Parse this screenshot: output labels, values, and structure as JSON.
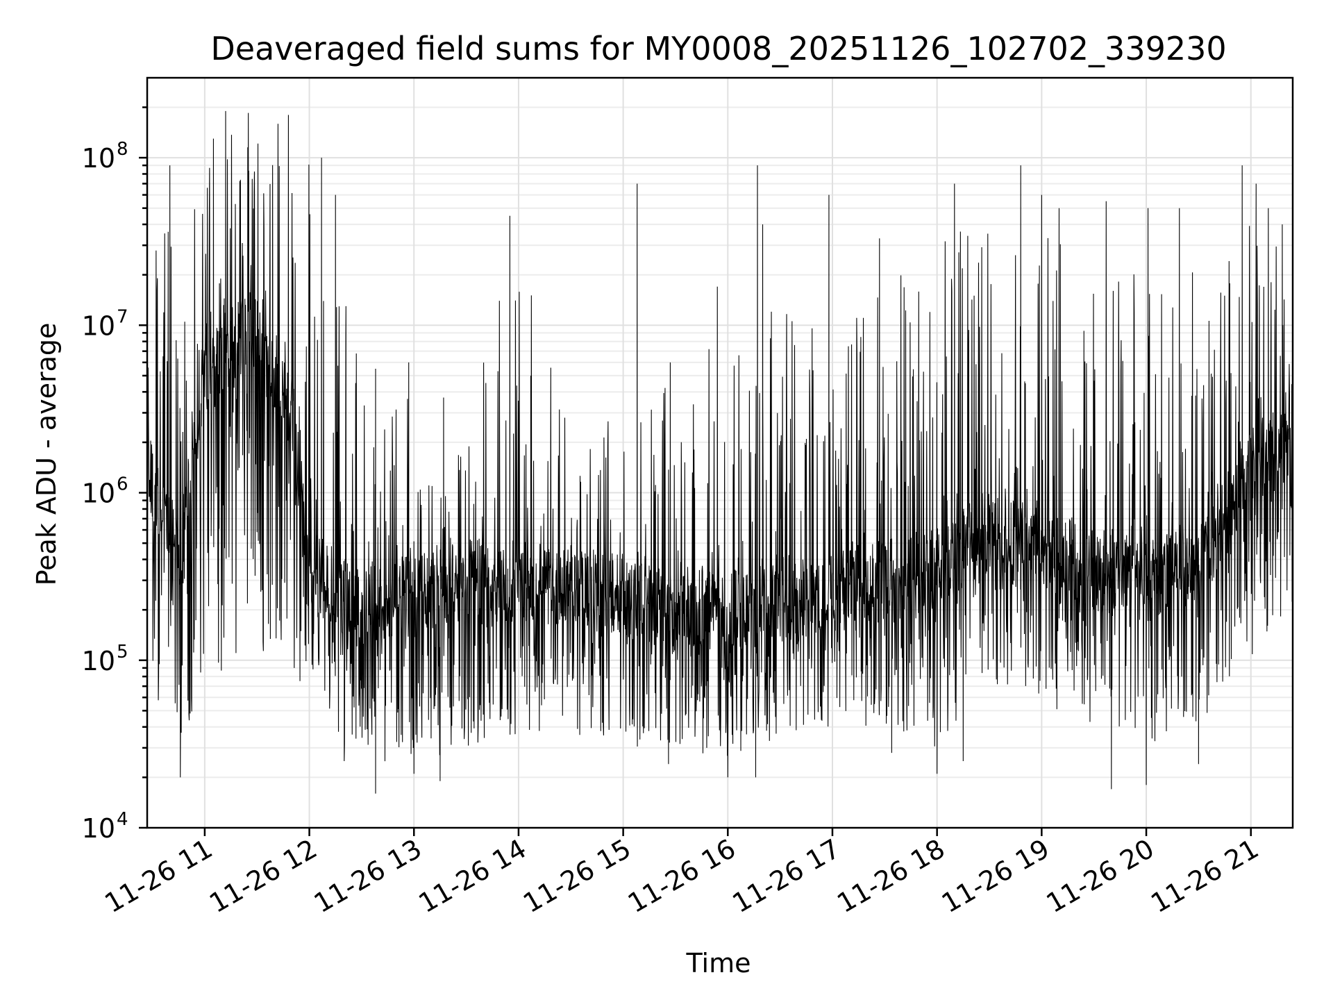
{
  "chart_data": {
    "type": "line",
    "title": "Deaveraged field sums for MY0008_20251126_102702_339230",
    "xlabel": "Time",
    "ylabel": "Peak ADU - average",
    "yscale": "log",
    "ylim": [
      10000,
      300000000
    ],
    "xlim": [
      "2025-11-26T10:27",
      "2025-11-26T21:24"
    ],
    "x_ticks": [
      {
        "value": "2025-11-26T11:00",
        "label": "11-26 11"
      },
      {
        "value": "2025-11-26T12:00",
        "label": "11-26 12"
      },
      {
        "value": "2025-11-26T13:00",
        "label": "11-26 13"
      },
      {
        "value": "2025-11-26T14:00",
        "label": "11-26 14"
      },
      {
        "value": "2025-11-26T15:00",
        "label": "11-26 15"
      },
      {
        "value": "2025-11-26T16:00",
        "label": "11-26 16"
      },
      {
        "value": "2025-11-26T17:00",
        "label": "11-26 17"
      },
      {
        "value": "2025-11-26T18:00",
        "label": "11-26 18"
      },
      {
        "value": "2025-11-26T19:00",
        "label": "11-26 19"
      },
      {
        "value": "2025-11-26T20:00",
        "label": "11-26 20"
      },
      {
        "value": "2025-11-26T21:00",
        "label": "11-26 21"
      }
    ],
    "y_ticks": [
      {
        "value": 10000,
        "base": "10",
        "exp": "4"
      },
      {
        "value": 100000,
        "base": "10",
        "exp": "5"
      },
      {
        "value": 1000000,
        "base": "10",
        "exp": "6"
      },
      {
        "value": 10000000,
        "base": "10",
        "exp": "7"
      },
      {
        "value": 100000000,
        "base": "10",
        "exp": "8"
      }
    ],
    "grid": true,
    "legend": false,
    "line_color": "#000000",
    "series_envelope": [
      {
        "t": "2025-11-26T10:27",
        "low": 70000,
        "typical": 1500000,
        "high": 30000000
      },
      {
        "t": "2025-11-26T10:45",
        "low": 30000,
        "typical": 400000,
        "high": 60000000
      },
      {
        "t": "2025-11-26T11:00",
        "low": 50000,
        "typical": 5000000,
        "high": 120000000
      },
      {
        "t": "2025-11-26T11:30",
        "low": 120000,
        "typical": 10000000,
        "high": 190000000
      },
      {
        "t": "2025-11-26T11:50",
        "low": 80000,
        "typical": 3000000,
        "high": 150000000
      },
      {
        "t": "2025-11-26T12:00",
        "low": 50000,
        "typical": 350000,
        "high": 100000000
      },
      {
        "t": "2025-11-26T12:30",
        "low": 25000,
        "typical": 200000,
        "high": 5000000
      },
      {
        "t": "2025-11-26T13:00",
        "low": 22000,
        "typical": 250000,
        "high": 4000000
      },
      {
        "t": "2025-11-26T13:30",
        "low": 30000,
        "typical": 300000,
        "high": 3000000
      },
      {
        "t": "2025-11-26T14:00",
        "low": 30000,
        "typical": 300000,
        "high": 40000000
      },
      {
        "t": "2025-11-26T14:30",
        "low": 35000,
        "typical": 280000,
        "high": 2000000
      },
      {
        "t": "2025-11-26T15:00",
        "low": 30000,
        "typical": 250000,
        "high": 3000000
      },
      {
        "t": "2025-11-26T15:30",
        "low": 30000,
        "typical": 180000,
        "high": 5000000
      },
      {
        "t": "2025-11-26T16:00",
        "low": 25000,
        "typical": 200000,
        "high": 20000000
      },
      {
        "t": "2025-11-26T16:30",
        "low": 35000,
        "typical": 220000,
        "high": 15000000
      },
      {
        "t": "2025-11-26T17:00",
        "low": 40000,
        "typical": 250000,
        "high": 10000000
      },
      {
        "t": "2025-11-26T17:30",
        "low": 40000,
        "typical": 300000,
        "high": 20000000
      },
      {
        "t": "2025-11-26T18:00",
        "low": 30000,
        "typical": 350000,
        "high": 40000000
      },
      {
        "t": "2025-11-26T18:30",
        "low": 60000,
        "typical": 600000,
        "high": 40000000
      },
      {
        "t": "2025-11-26T19:00",
        "low": 50000,
        "typical": 450000,
        "high": 40000000
      },
      {
        "t": "2025-11-26T19:30",
        "low": 40000,
        "typical": 350000,
        "high": 30000000
      },
      {
        "t": "2025-11-26T20:00",
        "low": 30000,
        "typical": 300000,
        "high": 20000000
      },
      {
        "t": "2025-11-26T20:30",
        "low": 40000,
        "typical": 400000,
        "high": 30000000
      },
      {
        "t": "2025-11-26T21:00",
        "low": 100000,
        "typical": 1500000,
        "high": 40000000
      },
      {
        "t": "2025-11-26T21:24",
        "low": 200000,
        "typical": 2000000,
        "high": 30000000
      }
    ],
    "spikes": [
      {
        "t": "2025-11-26T10:40",
        "value": 90000000
      },
      {
        "t": "2025-11-26T11:05",
        "value": 130000000
      },
      {
        "t": "2025-11-26T11:12",
        "value": 190000000
      },
      {
        "t": "2025-11-26T11:25",
        "value": 185000000
      },
      {
        "t": "2025-11-26T11:48",
        "value": 180000000
      },
      {
        "t": "2025-11-26T12:07",
        "value": 100000000
      },
      {
        "t": "2025-11-26T12:15",
        "value": 60000000
      },
      {
        "t": "2025-11-26T12:21",
        "value": 13000000
      },
      {
        "t": "2025-11-26T12:38",
        "value": 5500000
      },
      {
        "t": "2025-11-26T12:57",
        "value": 6000000
      },
      {
        "t": "2025-11-26T13:17",
        "value": 3700000
      },
      {
        "t": "2025-11-26T13:49",
        "value": 14000000
      },
      {
        "t": "2025-11-26T13:55",
        "value": 45000000
      },
      {
        "t": "2025-11-26T14:07",
        "value": 5000000
      },
      {
        "t": "2025-11-26T15:08",
        "value": 70000000
      },
      {
        "t": "2025-11-26T15:27",
        "value": 6000000
      },
      {
        "t": "2025-11-26T15:54",
        "value": 17000000
      },
      {
        "t": "2025-11-26T16:17",
        "value": 90000000
      },
      {
        "t": "2025-11-26T16:20",
        "value": 40000000
      },
      {
        "t": "2025-11-26T16:58",
        "value": 60000000
      },
      {
        "t": "2025-11-26T17:27",
        "value": 33000000
      },
      {
        "t": "2025-11-26T18:10",
        "value": 70000000
      },
      {
        "t": "2025-11-26T18:48",
        "value": 90000000
      },
      {
        "t": "2025-11-26T19:00",
        "value": 60000000
      },
      {
        "t": "2025-11-26T19:10",
        "value": 50000000
      },
      {
        "t": "2025-11-26T19:37",
        "value": 55000000
      },
      {
        "t": "2025-11-26T20:01",
        "value": 50000000
      },
      {
        "t": "2025-11-26T20:19",
        "value": 50000000
      },
      {
        "t": "2025-11-26T20:55",
        "value": 90000000
      },
      {
        "t": "2025-11-26T21:03",
        "value": 70000000
      },
      {
        "t": "2025-11-26T21:10",
        "value": 50000000
      },
      {
        "t": "2025-11-26T21:18",
        "value": 40000000
      }
    ],
    "dips": [
      {
        "t": "2025-11-26T10:46",
        "value": 20000
      },
      {
        "t": "2025-11-26T12:20",
        "value": 25000
      },
      {
        "t": "2025-11-26T12:38",
        "value": 16000
      },
      {
        "t": "2025-11-26T13:00",
        "value": 21000
      },
      {
        "t": "2025-11-26T13:15",
        "value": 19000
      },
      {
        "t": "2025-11-26T15:26",
        "value": 24000
      },
      {
        "t": "2025-11-26T16:00",
        "value": 20000
      },
      {
        "t": "2025-11-26T16:16",
        "value": 20000
      },
      {
        "t": "2025-11-26T17:34",
        "value": 28000
      },
      {
        "t": "2025-11-26T18:00",
        "value": 21000
      },
      {
        "t": "2025-11-26T18:15",
        "value": 25000
      },
      {
        "t": "2025-11-26T19:40",
        "value": 17000
      },
      {
        "t": "2025-11-26T20:00",
        "value": 18000
      },
      {
        "t": "2025-11-26T20:30",
        "value": 24000
      }
    ]
  }
}
